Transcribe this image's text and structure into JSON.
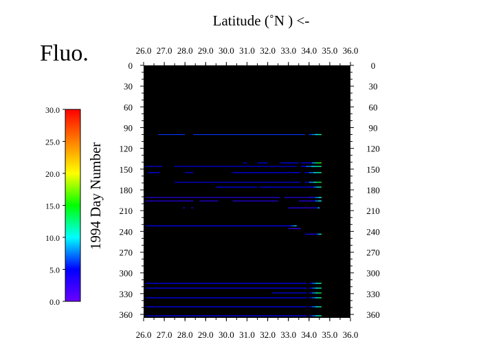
{
  "chart_data": {
    "type": "scatter",
    "title": "Fluo.",
    "xlabel": "Latitude  (˚N )  <-",
    "ylabel": "1994  Day Number",
    "xlim": [
      26.0,
      36.0
    ],
    "ylim": [
      0,
      365
    ],
    "x_ticks": [
      "26.0",
      "27.0",
      "28.0",
      "29.0",
      "30.0",
      "31.0",
      "32.0",
      "33.0",
      "34.0",
      "35.0",
      "36.0"
    ],
    "y_ticks": [
      "0",
      "30",
      "60",
      "90",
      "120",
      "150",
      "180",
      "210",
      "240",
      "270",
      "300",
      "330",
      "360"
    ],
    "background": "#000000",
    "colorbar": {
      "range": [
        0,
        30
      ],
      "ticks": [
        "0.0",
        "5.0",
        "10.0",
        "15.0",
        "20.0",
        "25.0",
        "30.0"
      ],
      "colors": [
        "#6a00ff",
        "#0000ff",
        "#00ffff",
        "#00ff00",
        "#ffff00",
        "#ff8000",
        "#ff0000"
      ]
    },
    "series": [
      {
        "day": 100,
        "segments": [
          [
            26.7,
            28.0
          ],
          [
            28.4,
            33.8
          ]
        ],
        "hi": [
          34.0,
          34.6
        ],
        "c": 6,
        "c2": 12
      },
      {
        "day": 141,
        "segments": [
          [
            30.8,
            31.0
          ],
          [
            31.5,
            32.0
          ],
          [
            32.6,
            33.5
          ],
          [
            33.6,
            34.0
          ]
        ],
        "hi": [
          34.0,
          34.6
        ],
        "c": 5,
        "c2": 16
      },
      {
        "day": 146,
        "segments": [
          [
            26.1,
            26.9
          ],
          [
            27.5,
            33.4
          ]
        ],
        "hi": [
          33.6,
          34.6
        ],
        "c": 5,
        "c2": 12
      },
      {
        "day": 155,
        "segments": [
          [
            26.2,
            26.8
          ],
          [
            28.0,
            28.4
          ],
          [
            30.3,
            33.6
          ]
        ],
        "hi": [
          33.8,
          34.6
        ],
        "c": 5,
        "c2": 12
      },
      {
        "day": 169,
        "segments": [
          [
            27.5,
            33.6
          ]
        ],
        "hi": [
          33.8,
          34.6
        ],
        "c": 5,
        "c2": 14
      },
      {
        "day": 176,
        "segments": [
          [
            29.5,
            31.5
          ],
          [
            31.6,
            34.1
          ]
        ],
        "hi": [
          34.1,
          34.6
        ],
        "c": 5,
        "c2": 12
      },
      {
        "day": 191,
        "segments": [
          [
            26.1,
            28.4
          ],
          [
            28.4,
            32.6
          ],
          [
            32.8,
            34.0
          ]
        ],
        "hi": [
          34.0,
          34.6
        ],
        "c": 3,
        "c2": 10
      },
      {
        "day": 196,
        "segments": [
          [
            26.1,
            28.4
          ],
          [
            28.7,
            29.6
          ],
          [
            30.3,
            32.5
          ],
          [
            33.5,
            34.0
          ]
        ],
        "hi": [
          34.0,
          34.6
        ],
        "c": 3,
        "c2": 10
      },
      {
        "day": 206,
        "segments": [
          [
            27.9,
            28.0
          ],
          [
            28.3,
            28.4
          ],
          [
            33.0,
            34.3
          ]
        ],
        "hi": [
          34.3,
          34.5
        ],
        "c": 3,
        "c2": 10
      },
      {
        "day": 232,
        "segments": [
          [
            26.1,
            33.0
          ]
        ],
        "hi": [
          33.0,
          33.4
        ],
        "c": 5,
        "c2": 9
      },
      {
        "day": 236,
        "segments": [
          [
            33.0,
            33.5
          ]
        ],
        "hi": [
          33.5,
          33.6
        ],
        "c": 2,
        "c2": 6
      },
      {
        "day": 244,
        "segments": [
          [
            33.8,
            34.3
          ]
        ],
        "hi": [
          34.3,
          34.6
        ],
        "c": 4,
        "c2": 12
      },
      {
        "day": 315,
        "segments": [
          [
            26.1,
            33.9
          ]
        ],
        "hi": [
          34.0,
          34.6
        ],
        "c": 5,
        "c2": 12
      },
      {
        "day": 322,
        "segments": [
          [
            26.1,
            33.9
          ]
        ],
        "hi": [
          34.0,
          34.6
        ],
        "c": 5,
        "c2": 12
      },
      {
        "day": 329,
        "segments": [
          [
            32.2,
            33.9
          ]
        ],
        "hi": [
          34.0,
          34.6
        ],
        "c": 5,
        "c2": 14
      },
      {
        "day": 336,
        "segments": [
          [
            26.1,
            33.9
          ]
        ],
        "hi": [
          34.0,
          34.6
        ],
        "c": 5,
        "c2": 12
      },
      {
        "day": 349,
        "segments": [
          [
            26.1,
            33.9
          ]
        ],
        "hi": [
          34.0,
          34.6
        ],
        "c": 5,
        "c2": 12
      },
      {
        "day": 362,
        "segments": [
          [
            26.1,
            33.9
          ]
        ],
        "hi": [
          34.0,
          34.6
        ],
        "c": 5,
        "c2": 12
      }
    ]
  }
}
